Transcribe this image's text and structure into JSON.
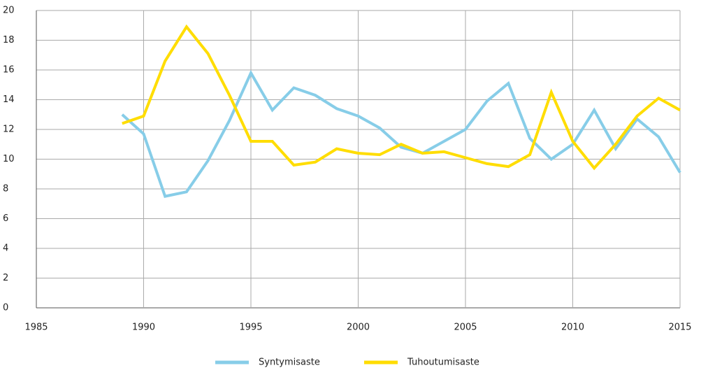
{
  "chart_data": {
    "type": "line",
    "x": [
      1989,
      1990,
      1991,
      1992,
      1993,
      1994,
      1995,
      1996,
      1997,
      1998,
      1999,
      2000,
      2001,
      2002,
      2003,
      2004,
      2005,
      2006,
      2007,
      2008,
      2009,
      2010,
      2011,
      2012,
      2013,
      2014,
      2015
    ],
    "series": [
      {
        "name": "Syntymisaste",
        "color": "#87cde8",
        "values": [
          13.0,
          11.7,
          7.5,
          7.8,
          9.9,
          12.6,
          15.8,
          13.3,
          14.8,
          14.3,
          13.4,
          12.9,
          12.1,
          10.8,
          10.4,
          11.2,
          12.0,
          13.9,
          15.1,
          11.4,
          10.0,
          11.0,
          13.3,
          10.7,
          12.7,
          11.5,
          9.1
        ]
      },
      {
        "name": "Tuhoutumisaste",
        "color": "#ffdd00",
        "values": [
          12.4,
          12.9,
          16.6,
          18.9,
          17.1,
          14.3,
          11.2,
          11.2,
          9.6,
          9.8,
          10.7,
          10.4,
          10.3,
          11.0,
          10.4,
          10.5,
          10.1,
          9.7,
          9.5,
          10.3,
          14.5,
          11.2,
          9.4,
          11.0,
          12.9,
          14.1,
          13.3
        ]
      }
    ],
    "xlim": [
      1985,
      2015
    ],
    "xticks": [
      1985,
      1990,
      1995,
      2000,
      2005,
      2010,
      2015
    ],
    "ylim": [
      0,
      20
    ],
    "yticks": [
      0,
      2,
      4,
      6,
      8,
      10,
      12,
      14,
      16,
      18,
      20
    ],
    "grid": true,
    "legend": "bottom"
  }
}
